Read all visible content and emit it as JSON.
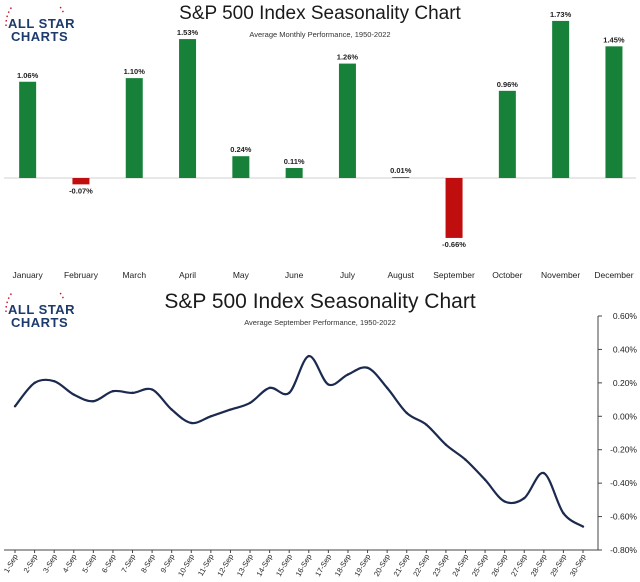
{
  "brand": {
    "line1": "ALL STAR",
    "line2": "CHARTS"
  },
  "colors": {
    "positive": "#17813a",
    "negative": "#c00d0d",
    "line": "#1b2a4e",
    "logo_blue": "#1c3a6b",
    "logo_red": "#c8102e"
  },
  "chart_data": [
    {
      "type": "bar",
      "title": "S&P 500 Index Seasonality Chart",
      "subtitle": "Average Monthly Performance, 1950-2022",
      "categories": [
        "January",
        "February",
        "March",
        "April",
        "May",
        "June",
        "July",
        "August",
        "September",
        "October",
        "November",
        "December"
      ],
      "values": [
        1.06,
        -0.07,
        1.1,
        1.53,
        0.24,
        0.11,
        1.26,
        0.01,
        -0.66,
        0.96,
        1.73,
        1.45
      ],
      "labels": [
        "1.06%",
        "-0.07%",
        "1.10%",
        "1.53%",
        "0.24%",
        "0.11%",
        "1.26%",
        "0.01%",
        "-0.66%",
        "0.96%",
        "1.73%",
        "1.45%"
      ],
      "ylim": [
        -0.85,
        1.8
      ],
      "xlabel": "",
      "ylabel": ""
    },
    {
      "type": "line",
      "title": "S&P 500 Index Seasonality Chart",
      "subtitle": "Average September Performance, 1950-2022",
      "x": [
        "1-Sep",
        "2-Sep",
        "3-Sep",
        "4-Sep",
        "5-Sep",
        "6-Sep",
        "7-Sep",
        "8-Sep",
        "9-Sep",
        "10-Sep",
        "11-Sep",
        "12-Sep",
        "13-Sep",
        "14-Sep",
        "15-Sep",
        "16-Sep",
        "17-Sep",
        "18-Sep",
        "19-Sep",
        "20-Sep",
        "21-Sep",
        "22-Sep",
        "23-Sep",
        "24-Sep",
        "25-Sep",
        "26-Sep",
        "27-Sep",
        "28-Sep",
        "29-Sep",
        "30-Sep"
      ],
      "values": [
        0.06,
        0.2,
        0.21,
        0.13,
        0.09,
        0.15,
        0.14,
        0.16,
        0.04,
        -0.04,
        0.0,
        0.04,
        0.08,
        0.17,
        0.14,
        0.36,
        0.19,
        0.25,
        0.29,
        0.17,
        0.02,
        -0.05,
        -0.17,
        -0.26,
        -0.38,
        -0.51,
        -0.49,
        -0.34,
        -0.58,
        -0.66
      ],
      "y_ticks": [
        0.6,
        0.4,
        0.2,
        0.0,
        -0.2,
        -0.4,
        -0.6,
        -0.8
      ],
      "y_tick_labels": [
        "0.60%",
        "0.40%",
        "0.20%",
        "0.00%",
        "-0.20%",
        "-0.40%",
        "-0.60%",
        "-0.80%"
      ],
      "ylim": [
        -0.8,
        0.6
      ],
      "xlabel": "",
      "ylabel": "",
      "y_axis_side": "right"
    }
  ]
}
